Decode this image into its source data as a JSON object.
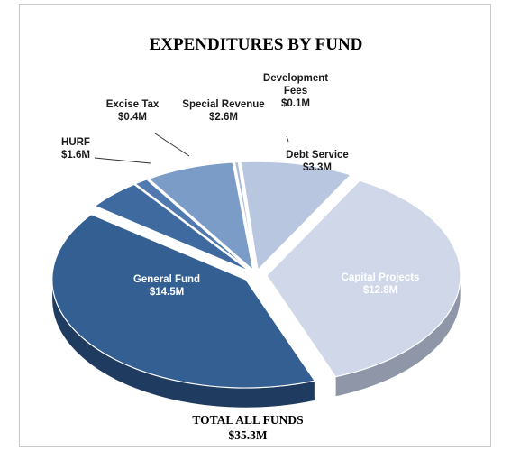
{
  "chart_data": {
    "type": "pie",
    "title": "EXPENDITURES BY FUND",
    "units": "$M",
    "slices": [
      {
        "name": "Debt Service",
        "value": 3.3,
        "label": "$3.3M",
        "color": "#b9c6df",
        "side": "#8190ad"
      },
      {
        "name": "Capital Projects",
        "value": 12.8,
        "label": "$12.8M",
        "color": "#cfd7e9",
        "side": "#8e96a8"
      },
      {
        "name": "General Fund",
        "value": 14.5,
        "label": "$14.5M",
        "color": "#345f92",
        "side": "#1f3c60"
      },
      {
        "name": "HURF",
        "value": 1.6,
        "label": "$1.6M",
        "color": "#3e6aa0",
        "side": "#223f66"
      },
      {
        "name": "Excise Tax",
        "value": 0.4,
        "label": "$0.4M",
        "color": "#5079b0",
        "side": "#2c4a72"
      },
      {
        "name": "Special Revenue",
        "value": 2.6,
        "label": "$2.6M",
        "color": "#7c9cc8",
        "side": "#4b6a96"
      },
      {
        "name": "Development\nFees",
        "value": 0.1,
        "label": "$0.1M",
        "color": "#a9bcd9",
        "side": "#6c809f"
      }
    ],
    "total_label": "TOTAL ALL FUNDS",
    "total_value": "$35.3M"
  }
}
